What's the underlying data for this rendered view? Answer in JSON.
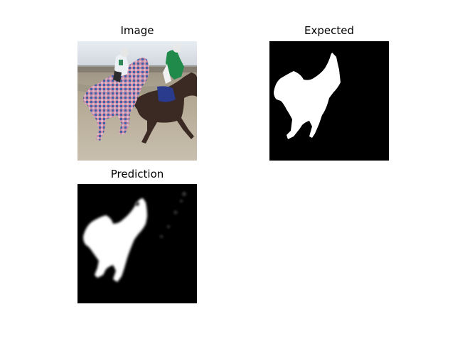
{
  "figure": {
    "panels": [
      {
        "id": "image",
        "title": "Image"
      },
      {
        "id": "expected",
        "title": "Expected"
      },
      {
        "id": "prediction",
        "title": "Prediction"
      }
    ]
  },
  "colors": {
    "background": "#ffffff",
    "mask_background": "#000000",
    "mask_foreground": "#ffffff"
  }
}
